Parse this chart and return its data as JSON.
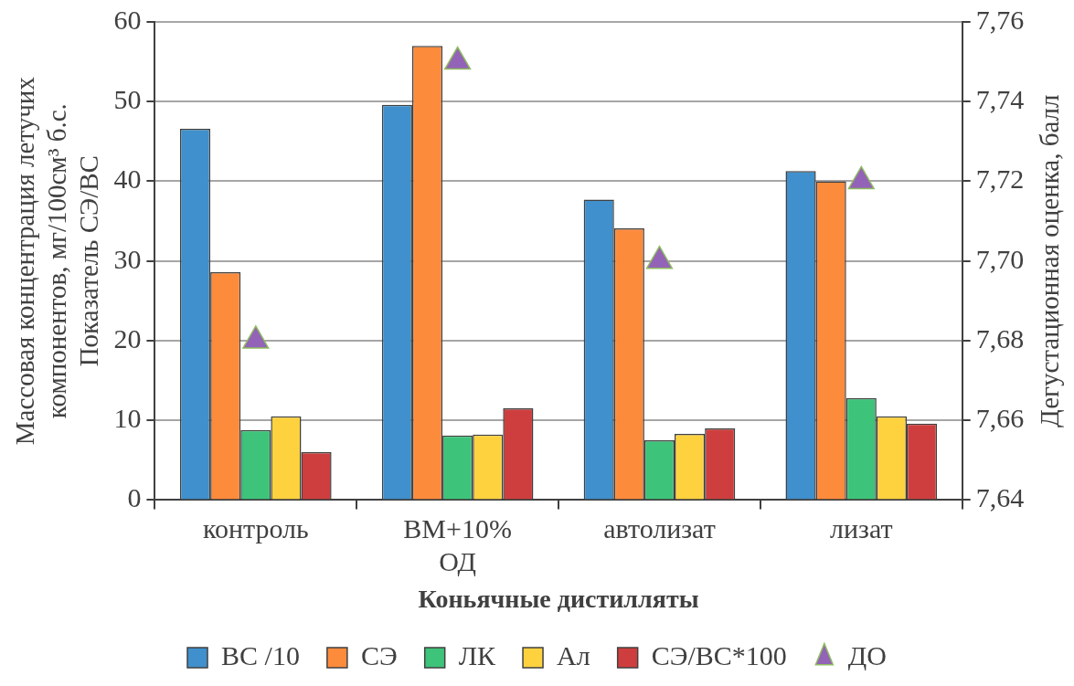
{
  "chart_data": {
    "type": "bar",
    "xlabel": "Коньячные дистилляты",
    "ylabel": "Массовая концентрация летучих\nкомпонентов, мг/100см³ б.с.\nПоказатель СЭ/ВС",
    "y2label": "Дегустационная оценка, балл",
    "categories": [
      "контроль",
      "ВМ+10% ОД",
      "автолизат",
      "лизат"
    ],
    "series": [
      {
        "name": "ВС /10",
        "color": "#3f90cc",
        "values": [
          46.6,
          49.6,
          37.7,
          41.3
        ]
      },
      {
        "name": "СЭ",
        "color": "#fd8b3c",
        "values": [
          28.6,
          57.0,
          34.1,
          40.0
        ]
      },
      {
        "name": "ЛК",
        "color": "#3ec37a",
        "values": [
          8.8,
          8.1,
          7.5,
          12.8
        ]
      },
      {
        "name": "Ал",
        "color": "#fed23f",
        "values": [
          10.5,
          8.2,
          8.3,
          10.5
        ]
      },
      {
        "name": "СЭ/ВС*100",
        "color": "#cf3e3e",
        "values": [
          6.0,
          11.5,
          9.0,
          9.6
        ]
      },
      {
        "name": "ДО",
        "type": "scatter",
        "axis": "y2",
        "marker": "triangle",
        "color": "#9363b7",
        "x": [
          "контроль",
          "ВМ+10% ОД",
          "автолизат",
          "лизат"
        ],
        "values": [
          7.68,
          7.75,
          7.7,
          7.72
        ]
      }
    ],
    "ylim": [
      0,
      60
    ],
    "yticks": [
      0,
      10,
      20,
      30,
      40,
      50,
      60
    ],
    "y2lim": [
      7.64,
      7.76
    ],
    "y2ticks": [
      {
        "value": 7.64,
        "label": "7,64"
      },
      {
        "value": 7.66,
        "label": "7,66"
      },
      {
        "value": 7.68,
        "label": "7,68"
      },
      {
        "value": 7.7,
        "label": "7,70"
      },
      {
        "value": 7.72,
        "label": "7,72"
      },
      {
        "value": 7.74,
        "label": "7,74"
      },
      {
        "value": 7.76,
        "label": "7,76"
      }
    ],
    "grid": "y",
    "legend": "bottom"
  }
}
